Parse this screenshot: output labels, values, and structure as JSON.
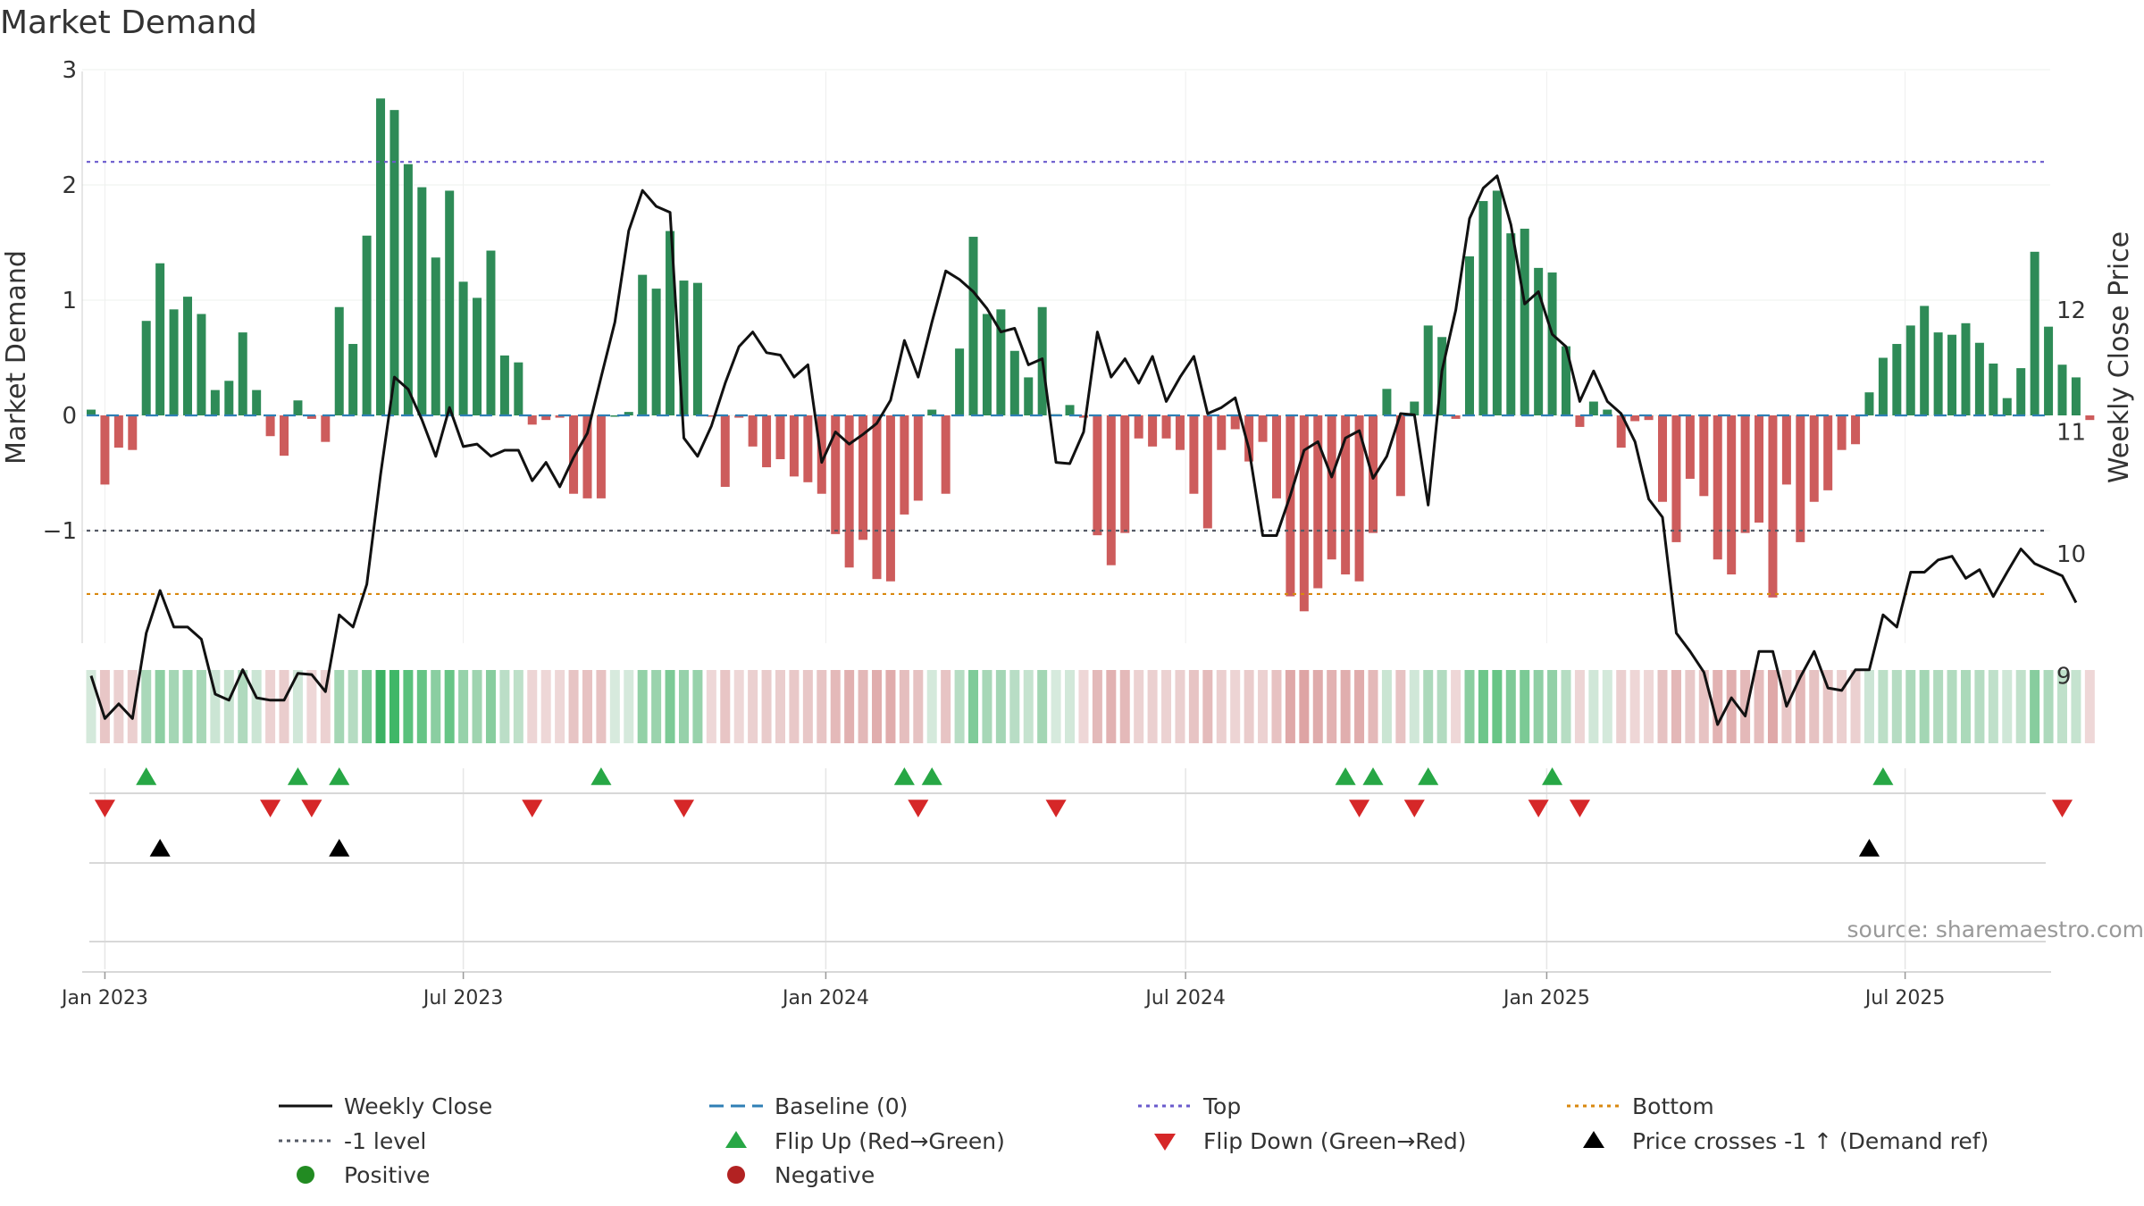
{
  "chart_data": {
    "type": "bar+line",
    "title": "Market Demand",
    "ylabel_left": "Market Demand",
    "ylabel_right": "Weekly Close Price",
    "ylim_left": [
      -1.95,
      3.0
    ],
    "ylim_right": [
      8.45,
      12.95
    ],
    "yticks_left": [
      -1,
      0,
      1,
      2,
      3
    ],
    "ytick_labels_left": [
      "−1",
      "0",
      "1",
      "2",
      "3"
    ],
    "yticks_right": [
      9,
      10,
      11,
      12
    ],
    "ytick_labels_right": [
      "9",
      "10",
      "11",
      "12"
    ],
    "reference_lines": {
      "top": 2.2,
      "bottom": -1.55,
      "minus_one": -1.0,
      "baseline": 0
    },
    "x_start": "2022-12-25",
    "x_interval_days": 7,
    "xtick_labels": [
      "Jan 2023",
      "Jul 2023",
      "Jan 2024",
      "Jul 2024",
      "Jan 2025",
      "Jul 2025"
    ],
    "xtick_indices": [
      1,
      27,
      53.3,
      79.4,
      105.6,
      131.6
    ],
    "demand": [
      0.05,
      -0.6,
      -0.28,
      -0.3,
      0.82,
      1.32,
      0.92,
      1.03,
      0.88,
      0.22,
      0.3,
      0.72,
      0.22,
      -0.18,
      -0.35,
      0.13,
      -0.03,
      -0.23,
      0.94,
      0.62,
      1.56,
      2.75,
      2.65,
      2.18,
      1.98,
      1.37,
      1.95,
      1.16,
      1.02,
      1.43,
      0.52,
      0.46,
      -0.08,
      -0.04,
      -0.02,
      -0.68,
      -0.72,
      -0.72,
      0.0,
      0.03,
      1.22,
      1.1,
      1.6,
      1.17,
      1.15,
      -0.01,
      -0.62,
      -0.02,
      -0.27,
      -0.45,
      -0.38,
      -0.53,
      -0.58,
      -0.68,
      -1.03,
      -1.32,
      -1.08,
      -1.42,
      -1.44,
      -0.86,
      -0.74,
      0.05,
      -0.68,
      0.58,
      1.55,
      0.88,
      0.92,
      0.56,
      0.33,
      0.94,
      0.01,
      0.09,
      -0.02,
      -1.04,
      -1.3,
      -1.02,
      -0.2,
      -0.27,
      -0.2,
      -0.3,
      -0.68,
      -0.98,
      -0.3,
      -0.12,
      -0.4,
      -0.23,
      -0.72,
      -1.57,
      -1.7,
      -1.5,
      -1.25,
      -1.38,
      -1.44,
      -1.02,
      0.23,
      -0.7,
      0.12,
      0.78,
      0.68,
      -0.03,
      1.38,
      1.86,
      1.95,
      1.58,
      1.62,
      1.28,
      1.24,
      0.6,
      -0.1,
      0.12,
      0.05,
      -0.28,
      -0.05,
      -0.04,
      -0.75,
      -1.1,
      -0.55,
      -0.7,
      -1.25,
      -1.38,
      -1.02,
      -0.93,
      -1.58,
      -0.6,
      -1.1,
      -0.75,
      -0.65,
      -0.3,
      -0.25,
      0.2,
      0.5,
      0.62,
      0.78,
      0.95,
      0.72,
      0.7,
      0.8,
      0.63,
      0.45,
      0.15,
      0.41,
      1.42,
      0.77,
      0.44,
      0.33,
      -0.04
    ],
    "price": [
      9.0,
      8.65,
      8.77,
      8.65,
      9.35,
      9.7,
      9.4,
      9.4,
      9.3,
      8.85,
      8.8,
      9.05,
      8.82,
      8.8,
      8.8,
      9.02,
      9.01,
      8.87,
      9.5,
      9.4,
      9.75,
      10.65,
      11.45,
      11.35,
      11.1,
      10.8,
      11.2,
      10.88,
      10.9,
      10.8,
      10.85,
      10.85,
      10.6,
      10.75,
      10.55,
      10.79,
      10.99,
      11.45,
      11.9,
      12.65,
      12.98,
      12.85,
      12.8,
      10.95,
      10.8,
      11.05,
      11.4,
      11.7,
      11.82,
      11.65,
      11.63,
      11.45,
      11.55,
      10.75,
      11.0,
      10.9,
      10.98,
      11.07,
      11.26,
      11.75,
      11.45,
      11.9,
      12.32,
      12.25,
      12.15,
      12.01,
      11.82,
      11.85,
      11.55,
      11.6,
      10.75,
      10.74,
      11.0,
      11.82,
      11.45,
      11.6,
      11.4,
      11.62,
      11.25,
      11.45,
      11.62,
      11.15,
      11.2,
      11.28,
      10.86,
      10.15,
      10.15,
      10.48,
      10.85,
      10.92,
      10.63,
      10.95,
      11.01,
      10.62,
      10.8,
      11.15,
      11.14,
      10.4,
      11.5,
      12.0,
      12.75,
      13.0,
      13.1,
      12.7,
      12.05,
      12.15,
      11.8,
      11.7,
      11.25,
      11.5,
      11.25,
      11.15,
      10.92,
      10.45,
      10.3,
      9.35,
      9.2,
      9.03,
      8.6,
      8.82,
      8.67,
      9.2,
      9.2,
      8.75,
      8.99,
      9.2,
      8.9,
      8.88,
      9.05,
      9.05,
      9.5,
      9.4,
      9.85,
      9.85,
      9.95,
      9.98,
      9.8,
      9.87,
      9.65,
      9.85,
      10.04,
      9.92,
      9.87,
      9.82,
      9.6
    ],
    "flip_up_indices": [
      4,
      15,
      18,
      37,
      59,
      61,
      91,
      93,
      97,
      106,
      130
    ],
    "flip_down_indices": [
      1,
      13,
      16,
      32,
      43,
      60,
      70,
      92,
      96,
      105,
      108,
      143
    ],
    "price_cross_up_indices": [
      5,
      18,
      129
    ]
  },
  "legend": [
    {
      "label": "Weekly Close",
      "style": "line",
      "color": "#111111"
    },
    {
      "label": "Baseline (0)",
      "style": "dash",
      "color": "#2f7fb5"
    },
    {
      "label": "Top",
      "style": "dot",
      "color": "#6a5acd"
    },
    {
      "label": "Bottom",
      "style": "dot",
      "color": "#d9880f"
    },
    {
      "label": "-1 level",
      "style": "dot",
      "color": "#555a66"
    },
    {
      "label": "Flip Up (Red→Green)",
      "style": "tri-up",
      "color": "#27a745"
    },
    {
      "label": "Flip Down (Green→Red)",
      "style": "tri-down",
      "color": "#d62728"
    },
    {
      "label": "Price crosses -1 ↑ (Demand ref)",
      "style": "tri-up",
      "color": "#000000"
    },
    {
      "label": "Positive",
      "style": "circle",
      "color": "#228b22"
    },
    {
      "label": "Negative",
      "style": "circle",
      "color": "#b22222"
    }
  ],
  "source": "source: sharemaestro.com",
  "colors": {
    "positive": "#2e8b57",
    "negative": "#cd5c5c",
    "price": "#111111"
  }
}
